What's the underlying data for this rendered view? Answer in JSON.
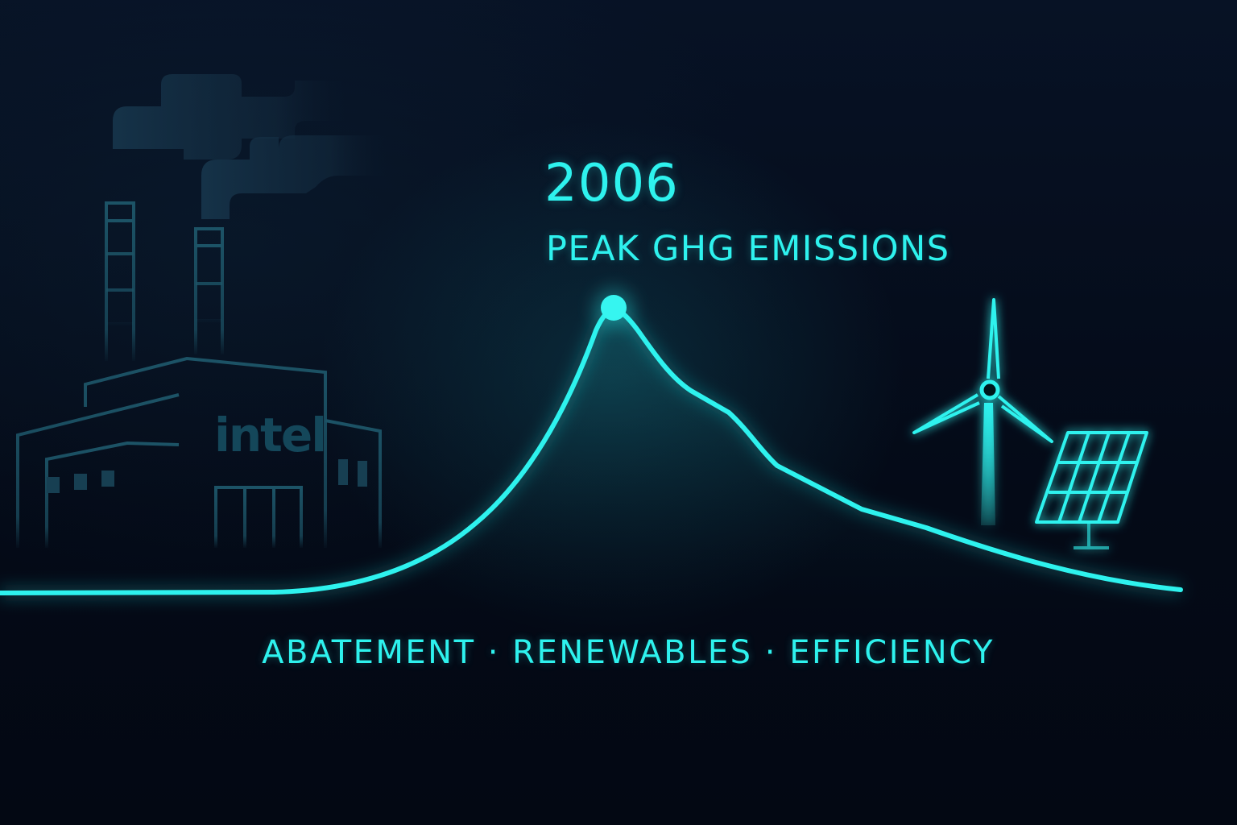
{
  "peak": {
    "year": "2006",
    "caption": "PEAK GHG EMISSIONS"
  },
  "tagline": "ABATEMENT · RENEWABLES · EFFICIENCY",
  "factory": {
    "brand": "intel"
  },
  "icons": [
    "factory-icon",
    "smoke-icon",
    "wind-turbine-icon",
    "solar-panel-icon"
  ],
  "colors": {
    "background": "#050b18",
    "accent": "#2ef2ee",
    "factory_line": "#1c5366"
  }
}
